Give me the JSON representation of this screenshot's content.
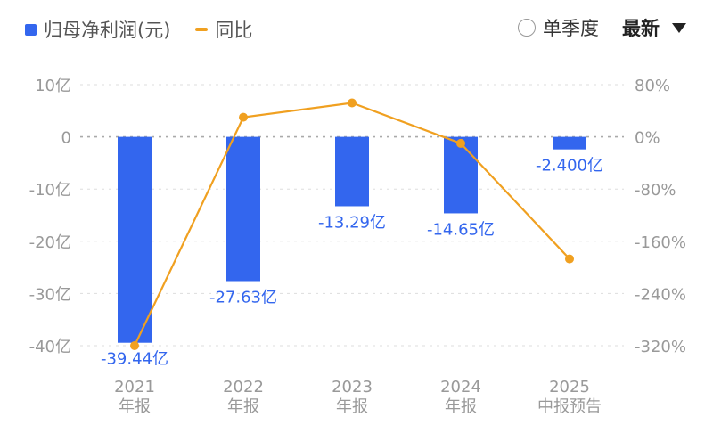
{
  "legend": {
    "bar_label": "归母净利润(元)",
    "line_label": "同比"
  },
  "controls": {
    "radio_label": "单季度",
    "dropdown_value": "最新"
  },
  "colors": {
    "bar": "#3366ee",
    "line": "#f0a020",
    "axis_text": "#999999",
    "bar_label_text": "#3366ee",
    "grid": "#dddddd"
  },
  "chart_data": {
    "type": "bar",
    "categories": [
      [
        "2021",
        "年报"
      ],
      [
        "2022",
        "年报"
      ],
      [
        "2023",
        "年报"
      ],
      [
        "2024",
        "年报"
      ],
      [
        "2025",
        "中报预告"
      ]
    ],
    "series": [
      {
        "name": "归母净利润(元)",
        "type": "bar",
        "axis": "left",
        "values": [
          -39.44,
          -27.63,
          -13.29,
          -14.65,
          -2.4
        ],
        "labels": [
          "-39.44亿",
          "-27.63亿",
          "-13.29亿",
          "-14.65亿",
          "-2.400亿"
        ]
      },
      {
        "name": "同比",
        "type": "line",
        "axis": "right",
        "values": [
          -320,
          30,
          52,
          -10,
          -187
        ]
      }
    ],
    "y_left": {
      "ticks": [
        10,
        0,
        -10,
        -20,
        -30,
        -40
      ],
      "tick_labels": [
        "10亿",
        "0",
        "-10亿",
        "-20亿",
        "-30亿",
        "-40亿"
      ],
      "range": [
        -40,
        10
      ]
    },
    "y_right": {
      "ticks": [
        80,
        0,
        -80,
        -160,
        -240,
        -320
      ],
      "tick_labels": [
        "80%",
        "0%",
        "-80%",
        "-160%",
        "-240%",
        "-320%"
      ],
      "range": [
        -320,
        80
      ]
    },
    "grid": true,
    "legend_position": "top-left"
  }
}
